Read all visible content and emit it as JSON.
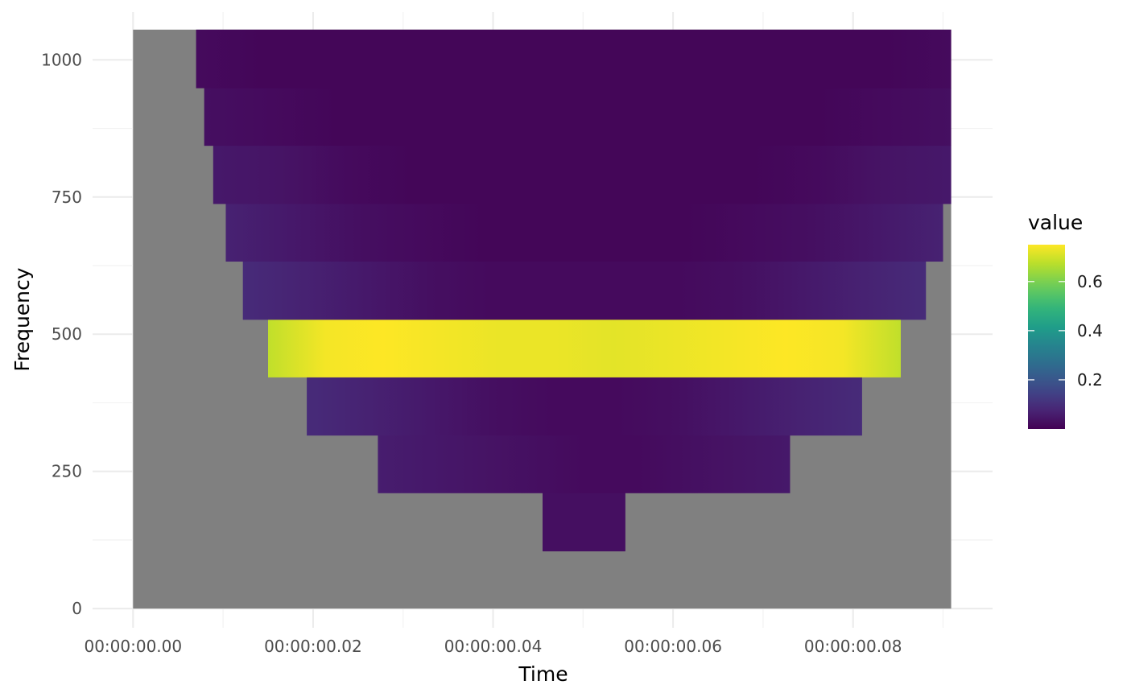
{
  "chart_data": {
    "type": "heatmap",
    "title": "",
    "xlabel": "Time",
    "ylabel": "Frequency",
    "x_tick_labels": [
      "00:00:00.00",
      "00:00:00.02",
      "00:00:00.04",
      "00:00:00.06",
      "00:00:00.08"
    ],
    "x_ticks_seconds": [
      0,
      0.02,
      0.04,
      0.06,
      0.08
    ],
    "xlim_seconds": [
      -0.0045,
      0.0955
    ],
    "y_ticks": [
      0,
      250,
      500,
      750,
      1000
    ],
    "ylim": [
      -35,
      1087
    ],
    "grid": true,
    "na_color": "#808080",
    "data_region": {
      "t_start": 0.0,
      "t_end": 0.0909,
      "f_start": 0,
      "f_end": 1055
    },
    "bands": [
      {
        "f_low": 105,
        "f_high": 211,
        "t_start": 0.0455,
        "t_end": 0.0547,
        "values": [
          0.03,
          0.03
        ]
      },
      {
        "f_low": 211,
        "f_high": 316,
        "t_start": 0.0272,
        "t_end": 0.073,
        "values": [
          0.06,
          0.05,
          0.04,
          0.03,
          0.02,
          0.02,
          0.03,
          0.04,
          0.05
        ]
      },
      {
        "f_low": 316,
        "f_high": 422,
        "t_start": 0.0193,
        "t_end": 0.081,
        "values": [
          0.09,
          0.07,
          0.05,
          0.03,
          0.02,
          0.02,
          0.03,
          0.05,
          0.07,
          0.09
        ]
      },
      {
        "f_low": 422,
        "f_high": 527,
        "t_start": 0.015,
        "t_end": 0.0853,
        "values": [
          0.68,
          0.74,
          0.75,
          0.74,
          0.73,
          0.73,
          0.72,
          0.73,
          0.74,
          0.75,
          0.74,
          0.68
        ]
      },
      {
        "f_low": 527,
        "f_high": 633,
        "t_start": 0.0122,
        "t_end": 0.0881,
        "values": [
          0.09,
          0.07,
          0.05,
          0.03,
          0.02,
          0.02,
          0.02,
          0.02,
          0.03,
          0.05,
          0.07,
          0.09
        ]
      },
      {
        "f_low": 633,
        "f_high": 738,
        "t_start": 0.0103,
        "t_end": 0.09,
        "values": [
          0.07,
          0.05,
          0.03,
          0.02,
          0.01,
          0.01,
          0.01,
          0.01,
          0.02,
          0.03,
          0.05,
          0.07
        ]
      },
      {
        "f_low": 738,
        "f_high": 844,
        "t_start": 0.0089,
        "t_end": 0.0909,
        "values": [
          0.05,
          0.04,
          0.02,
          0.01,
          0.01,
          0.01,
          0.01,
          0.01,
          0.01,
          0.02,
          0.04,
          0.05
        ]
      },
      {
        "f_low": 844,
        "f_high": 949,
        "t_start": 0.0079,
        "t_end": 0.0909,
        "values": [
          0.03,
          0.02,
          0.01,
          0.01,
          0.01,
          0.01,
          0.01,
          0.01,
          0.01,
          0.01,
          0.02,
          0.03
        ]
      },
      {
        "f_low": 949,
        "f_high": 1055,
        "t_start": 0.007,
        "t_end": 0.0909,
        "values": [
          0.02,
          0.01,
          0.01,
          0.01,
          0.01,
          0.01,
          0.01,
          0.01,
          0.01,
          0.01,
          0.01,
          0.02
        ]
      }
    ],
    "legend": {
      "title": "value",
      "placement": "right",
      "range": [
        0.0,
        0.75
      ],
      "ticks": [
        0.2,
        0.4,
        0.6
      ],
      "tick_labels": [
        "0.2",
        "0.4",
        "0.6"
      ],
      "colormap": "viridis"
    }
  }
}
